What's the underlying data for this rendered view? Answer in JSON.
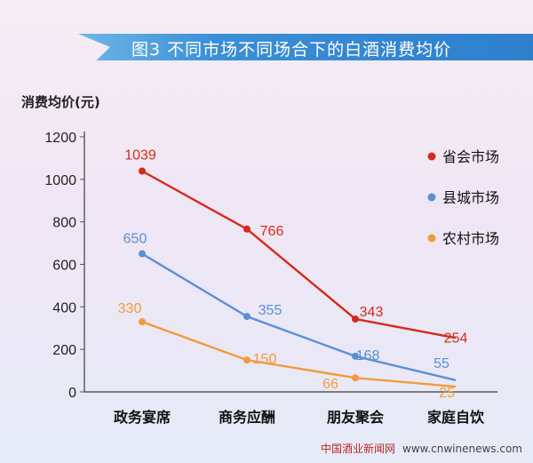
{
  "chart_title": "图3   不同市场不同场合下的白酒消费均价",
  "watermark": {
    "cn": "中国酒业新闻网",
    "url": "www.cnwinenews.com"
  },
  "colors": {
    "provincial": "#d42a1c",
    "county": "#5b8fd6",
    "rural": "#f39a3c",
    "axis": "#555555",
    "grid": "#e3dceb"
  },
  "chart_data": {
    "type": "line",
    "title": "图3   不同市场不同场合下的白酒消费均价",
    "ylabel": "消费均价(元)",
    "xlabel": "",
    "categories": [
      "政务宴席",
      "商务应酬",
      "朋友聚会",
      "家庭自饮"
    ],
    "ylim": [
      0,
      1200
    ],
    "yticks": [
      0,
      200,
      400,
      600,
      800,
      1000,
      1200
    ],
    "grid": false,
    "legend": "right",
    "series": [
      {
        "name": "省会市场",
        "color": "#d42a1c",
        "values": [
          1039,
          766,
          343,
          254
        ]
      },
      {
        "name": "县城市场",
        "color": "#5b8fd6",
        "values": [
          650,
          355,
          168,
          55
        ]
      },
      {
        "name": "农村市场",
        "color": "#f39a3c",
        "values": [
          330,
          150,
          66,
          25
        ]
      }
    ]
  }
}
